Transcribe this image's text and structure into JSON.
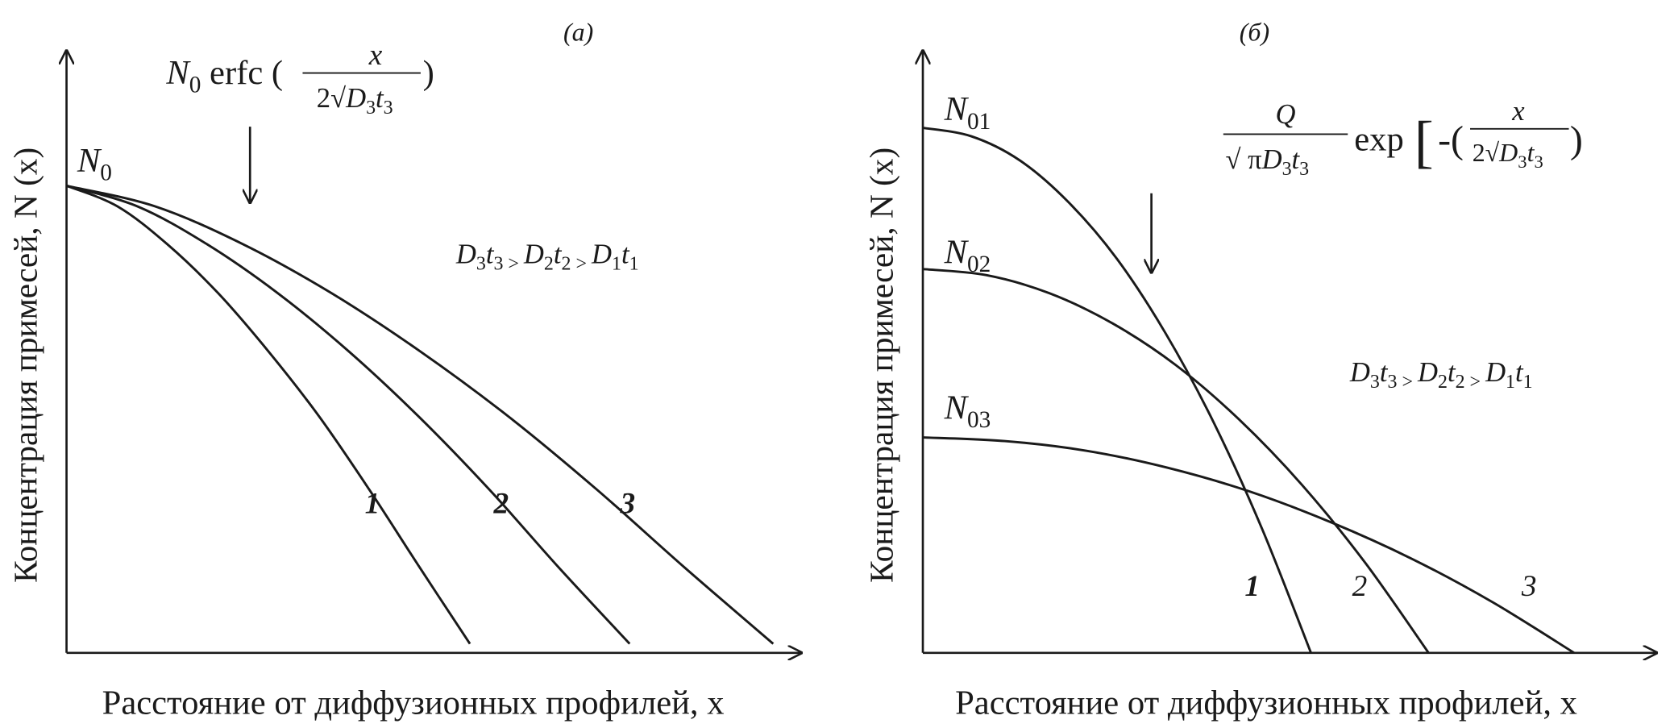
{
  "chart_data": [
    {
      "type": "line",
      "panel_label": "(a)",
      "xlabel": "Расстояние от диффузионных профилей, x",
      "ylabel": "Концентрация примесей, N (x)",
      "xlim": [
        0,
        10
      ],
      "ylim": [
        0,
        10
      ],
      "grid": false,
      "start_label": {
        "main": "N",
        "sub": "0"
      },
      "formula": {
        "n": "N",
        "nsub": "0",
        "func": " erfc (",
        "num": "x",
        "den_pre": "2√",
        "d": "D",
        "dsub": "3",
        "t": "t",
        "tsub": "3",
        "close": ")"
      },
      "inequality": {
        "a": "D",
        "a1": "3",
        "b": "t",
        "b1": "3",
        "gt1": " > ",
        "c": "D",
        "c1": "2",
        "d": "t",
        "d1": "2",
        "gt2": " > ",
        "e": "D",
        "e1": "1",
        "f": "t",
        "f1": "1"
      },
      "series": [
        {
          "name": "1",
          "x": [
            0,
            0.69,
            1.37,
            2.06,
            2.74,
            3.43,
            4.11,
            4.8,
            5.48
          ],
          "y": [
            7.74,
            7.4,
            6.77,
            5.96,
            5.0,
            3.92,
            2.71,
            1.41,
            0.15
          ]
        },
        {
          "name": "2",
          "x": [
            0,
            0.96,
            1.91,
            2.87,
            3.83,
            4.78,
            5.74,
            6.69,
            7.65
          ],
          "y": [
            7.74,
            7.4,
            6.77,
            5.96,
            5.0,
            3.92,
            2.71,
            1.41,
            0.15
          ]
        },
        {
          "name": "3",
          "x": [
            0,
            1.2,
            2.4,
            3.6,
            4.8,
            6.0,
            7.2,
            8.4,
            9.6
          ],
          "y": [
            7.74,
            7.4,
            6.77,
            5.96,
            5.0,
            3.92,
            2.71,
            1.41,
            0.15
          ]
        }
      ]
    },
    {
      "type": "line",
      "panel_label": "(б)",
      "xlabel": "Расстояние от диффузионных профилей, x",
      "ylabel": "Концентрация примесей, N (x)",
      "xlim": [
        0,
        10
      ],
      "ylim": [
        0,
        10
      ],
      "grid": false,
      "start_labels": [
        {
          "main": "N",
          "sub": "01"
        },
        {
          "main": "N",
          "sub": "02"
        },
        {
          "main": "N",
          "sub": "03"
        }
      ],
      "formula": {
        "q": "Q",
        "qden_pre": "√ π",
        "d": "D",
        "dsub": "3",
        "t": "t",
        "tsub": "3",
        "func": "exp",
        "lb": "[",
        "minus": "-(",
        "num": "x",
        "den_pre": "2√",
        "close": ")"
      },
      "inequality": {
        "a": "D",
        "a1": "3",
        "b": "t",
        "b1": "3",
        "gt1": " > ",
        "c": "D",
        "c1": "2",
        "d": "t",
        "d1": "2",
        "gt2": " > ",
        "e": "D",
        "e1": "1",
        "f": "t",
        "f1": "1"
      },
      "series": [
        {
          "name": "1",
          "x": [
            0,
            0.66,
            1.32,
            1.98,
            2.64,
            3.3,
            3.96,
            4.62,
            5.28
          ],
          "y": [
            8.7,
            8.56,
            8.16,
            7.47,
            6.53,
            5.3,
            3.81,
            2.04,
            0
          ]
        },
        {
          "name": "2",
          "x": [
            0,
            0.86,
            1.72,
            2.58,
            3.44,
            4.3,
            5.16,
            6.02,
            6.88
          ],
          "y": [
            6.36,
            6.26,
            5.96,
            5.46,
            4.77,
            3.87,
            2.78,
            1.49,
            0
          ]
        },
        {
          "name": "3",
          "x": [
            0,
            1.11,
            2.22,
            3.32,
            4.43,
            5.54,
            6.65,
            7.75,
            8.86
          ],
          "y": [
            3.57,
            3.51,
            3.35,
            3.07,
            2.68,
            2.17,
            1.56,
            0.84,
            0
          ]
        }
      ]
    }
  ]
}
